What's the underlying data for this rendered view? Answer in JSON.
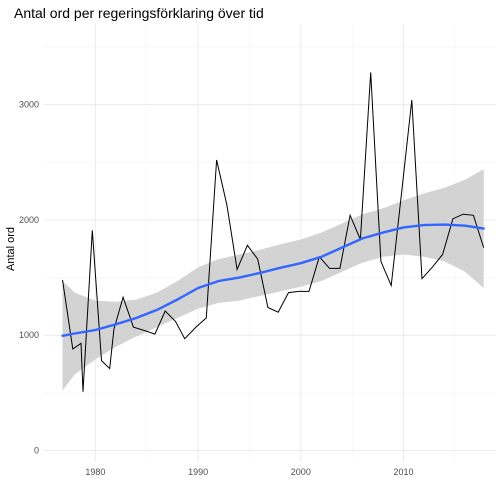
{
  "chart_data": {
    "type": "line",
    "title": "Antal ord per regeringsförklaring över tid",
    "xlabel": "",
    "ylabel": "Antal ord",
    "xlim": [
      1975,
      2019
    ],
    "ylim": [
      -100,
      3700
    ],
    "x_ticks": [
      1980,
      1990,
      2000,
      2010
    ],
    "y_ticks": [
      0,
      1000,
      2000,
      3000
    ],
    "grid": true,
    "colors": {
      "raw_line": "#000000",
      "smooth_line": "#3366ff",
      "confidence_band": "#d3d3d3",
      "grid_major": "#ebebeb",
      "grid_minor": "#f5f5f5"
    },
    "series": [
      {
        "x": [
          1976.8,
          1977.8,
          1978.6,
          1978.8,
          1979.7,
          1980.6,
          1981.4,
          1981.8,
          1982.7,
          1983.7,
          1984.8,
          1985.8,
          1986.8,
          1987.8,
          1988.7,
          1989.8,
          1990.8,
          1991.8,
          1992.8,
          1993.8,
          1994.8,
          1995.8,
          1996.8,
          1997.8,
          1998.8,
          1999.8,
          2000.8,
          2001.8,
          2002.8,
          2003.8,
          2004.8,
          2005.8,
          2006.8,
          2007.8,
          2008.8,
          2009.8,
          2010.8,
          2011.8,
          2012.8,
          2013.8,
          2014.8,
          2015.8,
          2016.8,
          2017.8
        ],
        "values": [
          1480,
          880,
          930,
          510,
          1910,
          780,
          710,
          1050,
          1330,
          1070,
          1040,
          1010,
          1210,
          1120,
          970,
          1070,
          1150,
          2520,
          2130,
          1570,
          1780,
          1660,
          1240,
          1200,
          1370,
          1380,
          1380,
          1680,
          1580,
          1580,
          2040,
          1830,
          3280,
          1640,
          1430,
          2230,
          3040,
          1490,
          1590,
          1700,
          2010,
          2050,
          2040,
          1760
        ]
      },
      {
        "x": [
          1976.8,
          1978,
          1980,
          1982,
          1984,
          1986,
          1988,
          1990,
          1992,
          1994,
          1996,
          1998,
          2000,
          2002,
          2004,
          2006,
          2008,
          2010,
          2012,
          2014,
          2016,
          2017.8
        ],
        "values": [
          995,
          1015,
          1045,
          1095,
          1150,
          1220,
          1310,
          1410,
          1470,
          1500,
          1540,
          1585,
          1625,
          1680,
          1760,
          1840,
          1890,
          1935,
          1955,
          1960,
          1950,
          1925
        ],
        "lower": [
          520,
          660,
          790,
          900,
          990,
          1070,
          1150,
          1230,
          1280,
          1300,
          1340,
          1380,
          1420,
          1470,
          1550,
          1630,
          1680,
          1700,
          1680,
          1640,
          1550,
          1410
        ],
        "upper": [
          1470,
          1370,
          1300,
          1290,
          1310,
          1370,
          1470,
          1590,
          1660,
          1700,
          1740,
          1790,
          1830,
          1890,
          1970,
          2050,
          2100,
          2170,
          2230,
          2280,
          2350,
          2440
        ]
      }
    ]
  }
}
